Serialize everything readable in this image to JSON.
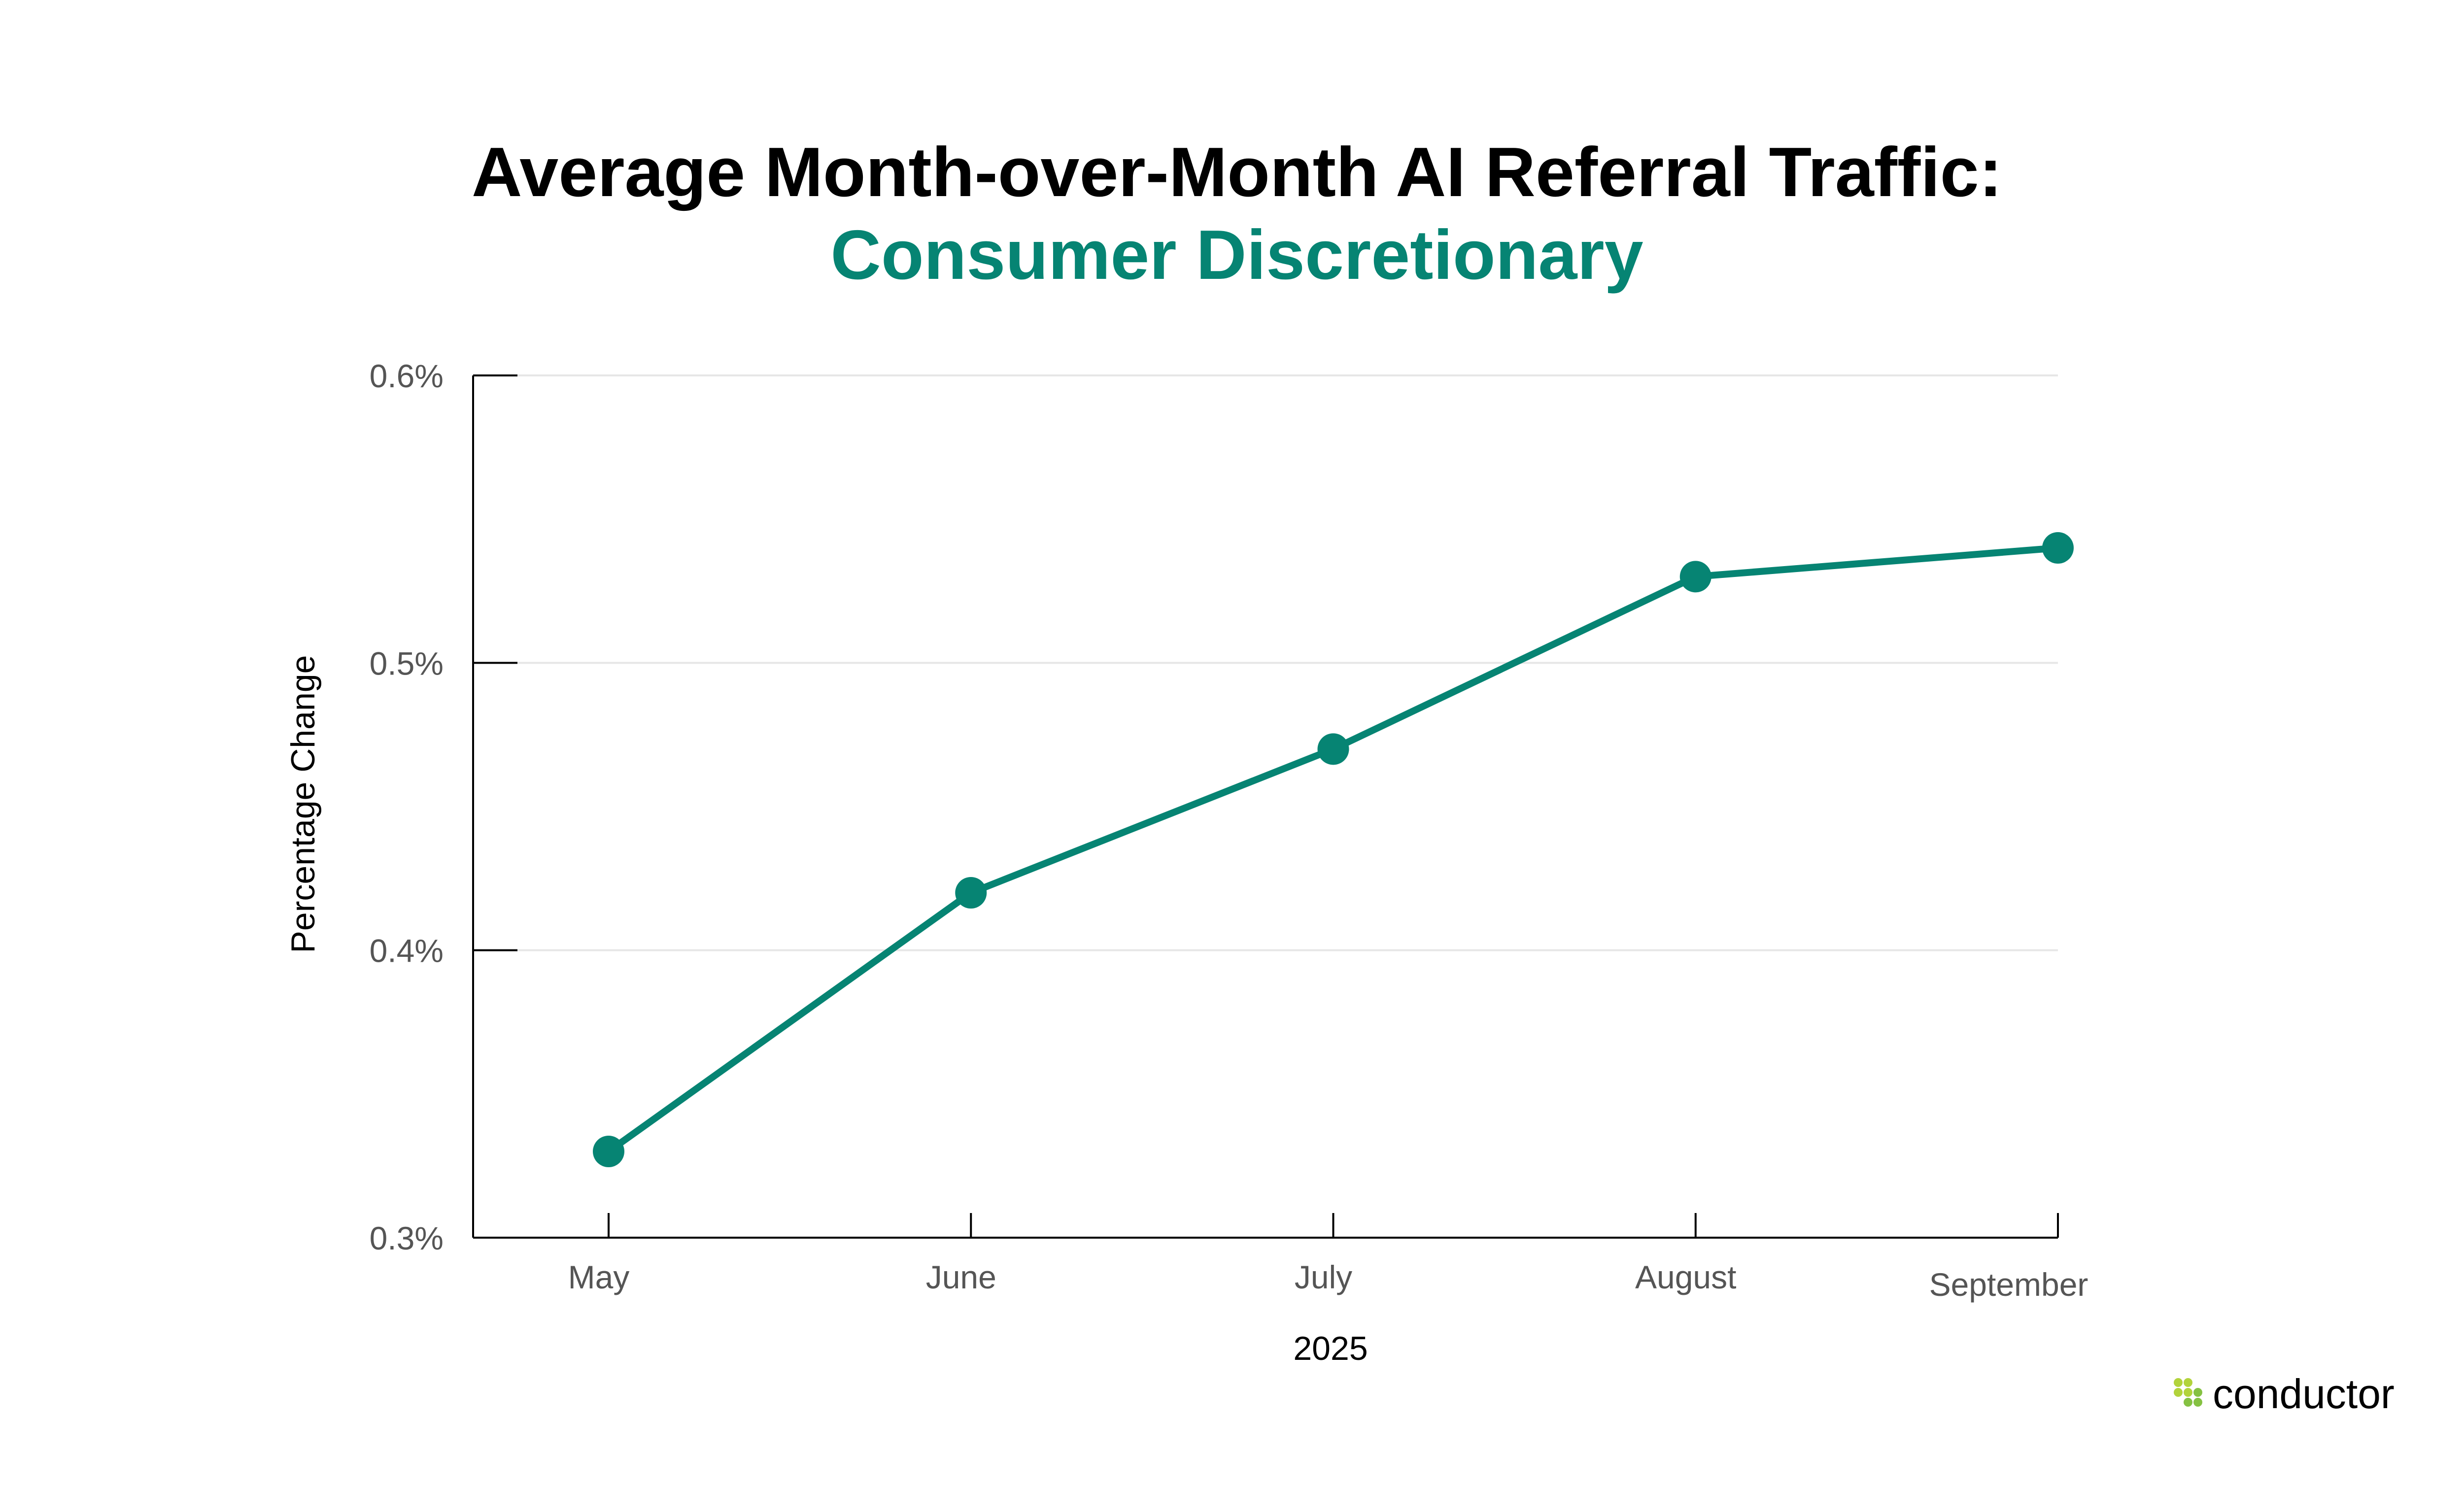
{
  "chart_data": {
    "type": "line",
    "title": "Average Month-over-Month AI Referral Traffic:",
    "subtitle": "Consumer Discretionary",
    "xlabel": "2025",
    "ylabel": "Percentage Change",
    "categories": [
      "May",
      "June",
      "July",
      "August",
      "September"
    ],
    "values": [
      0.33,
      0.42,
      0.47,
      0.53,
      0.54
    ],
    "ylim": [
      0.3,
      0.6
    ],
    "yticks": [
      0.3,
      0.4,
      0.5,
      0.6
    ],
    "ytick_labels": [
      "0.3%",
      "0.4%",
      "0.5%",
      "0.6%"
    ],
    "grid": "horizontal",
    "legend": "none",
    "colors": {
      "line": "#068473",
      "subtitle": "#068473",
      "grid": "#e6e6e6",
      "axis": "#000000"
    }
  },
  "logo": {
    "text": "conductor",
    "colors": [
      "#b2d33b",
      "#85c142"
    ]
  }
}
